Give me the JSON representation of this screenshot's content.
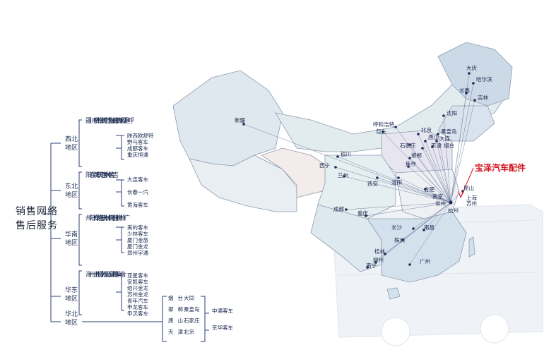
{
  "title": [
    "销售网络",
    "售后服务"
  ],
  "brand": "宝泽汽车配件",
  "regions": [
    {
      "id": "xibei",
      "name": [
        "西北",
        "地区"
      ],
      "cities": [
        "重庆",
        "成都",
        "西安",
        "呼和浩特",
        "包头",
        "兰州",
        "西宁",
        "银川",
        "新疆"
      ],
      "dealers": [
        "陕西欧舒特",
        "野马客车",
        "成都客车",
        "重庆恒通"
      ]
    },
    {
      "id": "dongbei",
      "name": [
        "东北",
        "地区"
      ],
      "cities": [
        "吉林",
        "大连",
        "大庆",
        "哈尔滨",
        "长春",
        "沈阳"
      ],
      "dealers": [
        "大连客车",
        "长春一汽",
        "黄海客车"
      ]
    },
    {
      "id": "huanan",
      "name": [
        "华南",
        "地区"
      ],
      "cities": [
        "广州",
        "株洲",
        "柳州",
        "桂林",
        "南宁",
        "长沙",
        "焦作",
        "洛阳",
        "郑州"
      ],
      "dealers": [
        "美的客车",
        "少林客车",
        "厦门金旅",
        "厦门金龙",
        "郑州宇通"
      ]
    },
    {
      "id": "huadong",
      "name": [
        "华东",
        "地区"
      ],
      "cities": [
        "合肥",
        "南京",
        "昆山",
        "常州",
        "无锡",
        "苏州",
        "杭州",
        "上海"
      ],
      "dealers": [
        "亚星客车",
        "安凯客车",
        "绍兴金龙",
        "苏州金龙",
        "青年汽车",
        "申龙客车",
        "申沃客车"
      ]
    },
    {
      "id": "huabei",
      "name": [
        "华北",
        "地区"
      ],
      "cities": [
        "烟台",
        "大同",
        "邯郸",
        "秦皇岛",
        "唐山",
        "石家庄",
        "天津",
        "北京"
      ],
      "dealers": [
        "中通客车",
        "京华客车"
      ]
    }
  ],
  "map_cities": [
    "新疆",
    "大庆",
    "哈尔滨",
    "长春",
    "吉林",
    "沈阳",
    "呼和浩特",
    "包头",
    "北京",
    "唐山",
    "秦皇岛",
    "天津",
    "大连",
    "石家庄",
    "烟台",
    "邯郸",
    "银川",
    "西宁",
    "兰州",
    "西安",
    "焦作",
    "洛阳",
    "合肥",
    "南京",
    "昆山",
    "上海",
    "苏州",
    "常州",
    "杭州",
    "成都",
    "重庆",
    "长沙",
    "株洲",
    "南昌",
    "桂林",
    "柳州",
    "南宁",
    "广州"
  ]
}
